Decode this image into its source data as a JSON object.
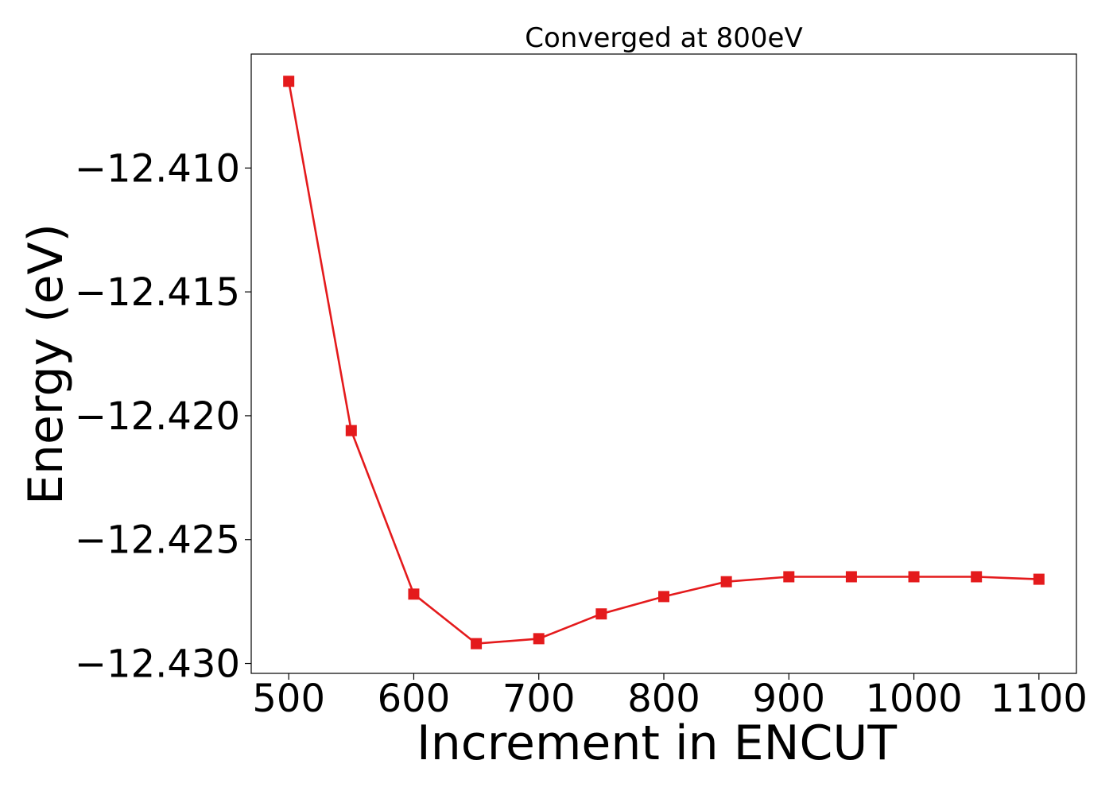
{
  "chart_data": {
    "type": "line",
    "title": "Converged at 800eV",
    "xlabel": "Increment in ENCUT",
    "ylabel": "Energy (eV)",
    "xlim": [
      470,
      1130
    ],
    "ylim": [
      -12.4304,
      -12.4054
    ],
    "xticks": [
      500,
      600,
      700,
      800,
      900,
      1000,
      1100
    ],
    "xtick_labels": [
      "500",
      "600",
      "700",
      "800",
      "900",
      "1000",
      "1100"
    ],
    "yticks": [
      -12.41,
      -12.415,
      -12.42,
      -12.425,
      -12.43
    ],
    "ytick_labels": [
      "−12.410",
      "−12.415",
      "−12.420",
      "−12.425",
      "−12.430"
    ],
    "grid": false,
    "series": [
      {
        "color": "#e41a1c",
        "marker": "square",
        "x": [
          500,
          550,
          600,
          650,
          700,
          750,
          800,
          850,
          900,
          950,
          1000,
          1050,
          1100
        ],
        "y": [
          -12.4065,
          -12.4206,
          -12.4272,
          -12.4292,
          -12.429,
          -12.428,
          -12.4273,
          -12.4267,
          -12.4265,
          -12.4265,
          -12.4265,
          -12.4265,
          -12.4266
        ]
      }
    ]
  }
}
